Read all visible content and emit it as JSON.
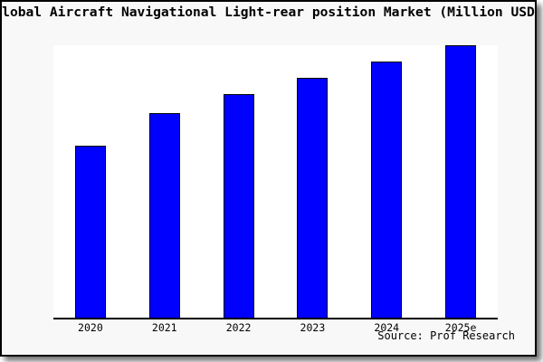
{
  "frame": {
    "border_color": "#000000",
    "figure_background": "#f8f8f8",
    "has_drop_shadow": true
  },
  "header": {
    "visible_title": "lobal Aircraft Navigational Light-rear position Market (Million USD"
  },
  "chart_data": {
    "type": "bar",
    "title": "Global Aircraft Navigational Light-rear position Market (Million USD)",
    "title_clipped_in_view": true,
    "categories": [
      "2020",
      "2021",
      "2022",
      "2023",
      "2024",
      "2025e"
    ],
    "values": [
      63,
      75,
      82,
      88,
      94,
      100
    ],
    "values_unit": "relative index (no y-axis scale shown; tallest bar 2025e = 100)",
    "xlabel": "",
    "ylabel": "",
    "ylim": [
      0,
      100
    ],
    "y_axis_ticks": [],
    "grid": false,
    "legend": false,
    "bar_fill": "#0000ff",
    "bar_stroke": "#000000",
    "plot_background": "#ffffff",
    "source": "Source: Prof Research"
  }
}
